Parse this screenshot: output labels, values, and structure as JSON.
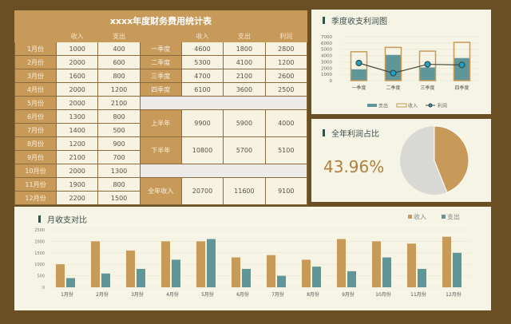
{
  "table": {
    "title": "xxxx年度财务费用统计表",
    "headers": [
      "收入",
      "支出"
    ],
    "right_headers": [
      "收入",
      "支出",
      "利润"
    ],
    "months": [
      [
        "1月份",
        "1000",
        "400"
      ],
      [
        "2月份",
        "2000",
        "600"
      ],
      [
        "3月份",
        "1600",
        "800"
      ],
      [
        "4月份",
        "2000",
        "1200"
      ],
      [
        "5月份",
        "2000",
        "2100"
      ],
      [
        "6月份",
        "1300",
        "800"
      ],
      [
        "7月份",
        "1400",
        "500"
      ],
      [
        "8月份",
        "1200",
        "900"
      ],
      [
        "9月份",
        "2100",
        "700"
      ],
      [
        "10月份",
        "2000",
        "1300"
      ],
      [
        "11月份",
        "1900",
        "800"
      ],
      [
        "12月份",
        "2200",
        "1500"
      ]
    ],
    "quarters": [
      [
        "一季度",
        "4600",
        "1800",
        "2800"
      ],
      [
        "二季度",
        "5300",
        "4100",
        "1200"
      ],
      [
        "三季度",
        "4700",
        "2100",
        "2600"
      ],
      [
        "四季度",
        "6100",
        "3600",
        "2500"
      ]
    ],
    "halves": [
      [
        "上半年",
        "9900",
        "5900",
        "4000"
      ],
      [
        "下半年",
        "10800",
        "5700",
        "5100"
      ]
    ],
    "year": [
      "全年收入",
      "20700",
      "11600",
      "9100"
    ]
  },
  "pie_panel": {
    "title": "全年利润占比",
    "value": "43.96%"
  },
  "colors": {
    "income": "#c79a5a",
    "expense": "#5e9699",
    "profit_line": "#4a4a3a",
    "profit_marker": "#1fa0c8",
    "pie_rest": "#d8d8d4",
    "background": "#6b4f24"
  },
  "chart_data": [
    {
      "type": "bar",
      "title": "季度收支利润图",
      "categories": [
        "一季度",
        "二季度",
        "三季度",
        "四季度"
      ],
      "ylim": [
        0,
        7000
      ],
      "yticks": [
        "0",
        "1000",
        "2000",
        "3000",
        "4000",
        "5000",
        "6000",
        "7000"
      ],
      "grid": true,
      "legend": "bottom",
      "series": [
        {
          "name": "支出",
          "values": [
            1800,
            4100,
            2100,
            3600
          ]
        },
        {
          "name": "收入",
          "values": [
            4600,
            5300,
            4700,
            6100
          ]
        },
        {
          "name": "利润",
          "type": "line",
          "values": [
            2800,
            1200,
            2600,
            2500
          ]
        }
      ]
    },
    {
      "type": "pie",
      "title": "全年利润占比",
      "values": [
        43.96,
        56.04
      ]
    },
    {
      "type": "bar",
      "title": "月收支对比",
      "categories": [
        "1月份",
        "2月份",
        "3月份",
        "4月份",
        "5月份",
        "6月份",
        "7月份",
        "8月份",
        "9月份",
        "10月份",
        "11月份",
        "12月份"
      ],
      "ylim": [
        0,
        2500
      ],
      "yticks": [
        "0",
        "500",
        "1000",
        "1500",
        "2000",
        "2500"
      ],
      "grid": true,
      "legend": "top-right",
      "series": [
        {
          "name": "收入",
          "values": [
            1000,
            2000,
            1600,
            2000,
            2000,
            1300,
            1400,
            1200,
            2100,
            2000,
            1900,
            2200
          ]
        },
        {
          "name": "支出",
          "values": [
            400,
            600,
            800,
            1200,
            2100,
            800,
            500,
            900,
            700,
            1300,
            800,
            1500
          ]
        }
      ]
    }
  ]
}
